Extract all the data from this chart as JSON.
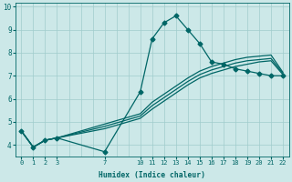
{
  "xlabel": "Humidex (Indice chaleur)",
  "bg_color": "#cce8e8",
  "grid_color": "#a0cccc",
  "line_color": "#006666",
  "xlim": [
    -0.5,
    22.5
  ],
  "ylim": [
    3.5,
    10.15
  ],
  "yticks": [
    4,
    5,
    6,
    7,
    8,
    9,
    10
  ],
  "xticks": [
    0,
    1,
    2,
    3,
    7,
    10,
    11,
    12,
    13,
    14,
    15,
    16,
    17,
    18,
    19,
    20,
    21,
    22
  ],
  "lines": [
    {
      "x": [
        0,
        1,
        2,
        3,
        7,
        10,
        11,
        12,
        13,
        14,
        15,
        16,
        17,
        18,
        19,
        20,
        21,
        22
      ],
      "y": [
        4.6,
        3.9,
        4.2,
        4.3,
        3.7,
        6.3,
        8.6,
        9.3,
        9.6,
        9.0,
        8.4,
        7.6,
        7.5,
        7.3,
        7.2,
        7.1,
        7.0,
        7.0
      ],
      "marker": "D",
      "markersize": 2.5,
      "lw": 0.9
    },
    {
      "x": [
        0,
        1,
        2,
        3,
        7,
        10,
        11,
        12,
        13,
        14,
        15,
        16,
        17,
        18,
        19,
        20,
        21,
        22
      ],
      "y": [
        4.6,
        3.9,
        4.2,
        4.3,
        4.7,
        5.15,
        5.55,
        5.9,
        6.25,
        6.6,
        6.9,
        7.1,
        7.25,
        7.4,
        7.5,
        7.6,
        7.65,
        7.05
      ],
      "marker": null,
      "markersize": 0,
      "lw": 0.9
    },
    {
      "x": [
        0,
        1,
        2,
        3,
        7,
        10,
        11,
        12,
        13,
        14,
        15,
        16,
        17,
        18,
        19,
        20,
        21,
        22
      ],
      "y": [
        4.6,
        3.9,
        4.2,
        4.3,
        4.8,
        5.25,
        5.7,
        6.05,
        6.4,
        6.75,
        7.05,
        7.25,
        7.4,
        7.55,
        7.65,
        7.7,
        7.75,
        7.1
      ],
      "marker": null,
      "markersize": 0,
      "lw": 0.9
    },
    {
      "x": [
        0,
        1,
        2,
        3,
        7,
        10,
        11,
        12,
        13,
        14,
        15,
        16,
        17,
        18,
        19,
        20,
        21,
        22
      ],
      "y": [
        4.6,
        3.9,
        4.2,
        4.3,
        4.9,
        5.35,
        5.85,
        6.2,
        6.55,
        6.9,
        7.2,
        7.4,
        7.55,
        7.7,
        7.8,
        7.85,
        7.9,
        7.15
      ],
      "marker": null,
      "markersize": 0,
      "lw": 0.9
    }
  ],
  "xlabel_fontsize": 5.8,
  "tick_fontsize_x": 5.0,
  "tick_fontsize_y": 5.5
}
